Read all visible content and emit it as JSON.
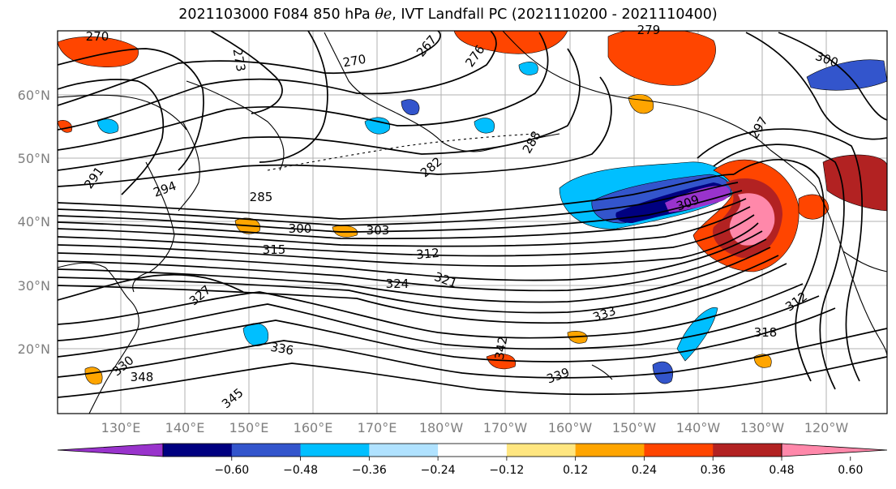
{
  "map": {
    "title_prefix": "2021103000 F084 850 hPa ",
    "title_var": "θe",
    "title_suffix": ", IVT Landfall PC (2021110200 - 2021110400)",
    "lat_labels": [
      "60°N",
      "50°N",
      "40°N",
      "30°N",
      "20°N"
    ],
    "lon_labels": [
      "130°E",
      "140°E",
      "150°E",
      "160°E",
      "170°E",
      "180°W",
      "170°W",
      "160°W",
      "150°W",
      "140°W",
      "130°W",
      "120°W"
    ],
    "contour_labels": [
      "270",
      "273",
      "276",
      "267",
      "279",
      "270",
      "288",
      "282",
      "285",
      "291",
      "294",
      "300",
      "303",
      "309",
      "312",
      "315",
      "321",
      "324",
      "327",
      "330",
      "333",
      "336",
      "339",
      "342",
      "345",
      "348",
      "318",
      "312",
      "300",
      "297"
    ],
    "colorbar": {
      "colors": [
        "#9933cc",
        "#000080",
        "#3355cc",
        "#00bfff",
        "#b0e2ff",
        "#ffffff",
        "#ffe680",
        "#ffa500",
        "#ff4500",
        "#b22222",
        "#ff88aa"
      ],
      "tick_labels": [
        "−0.60",
        "−0.48",
        "−0.36",
        "−0.24",
        "−0.12",
        "0.12",
        "0.24",
        "0.36",
        "0.48",
        "0.60"
      ]
    }
  }
}
